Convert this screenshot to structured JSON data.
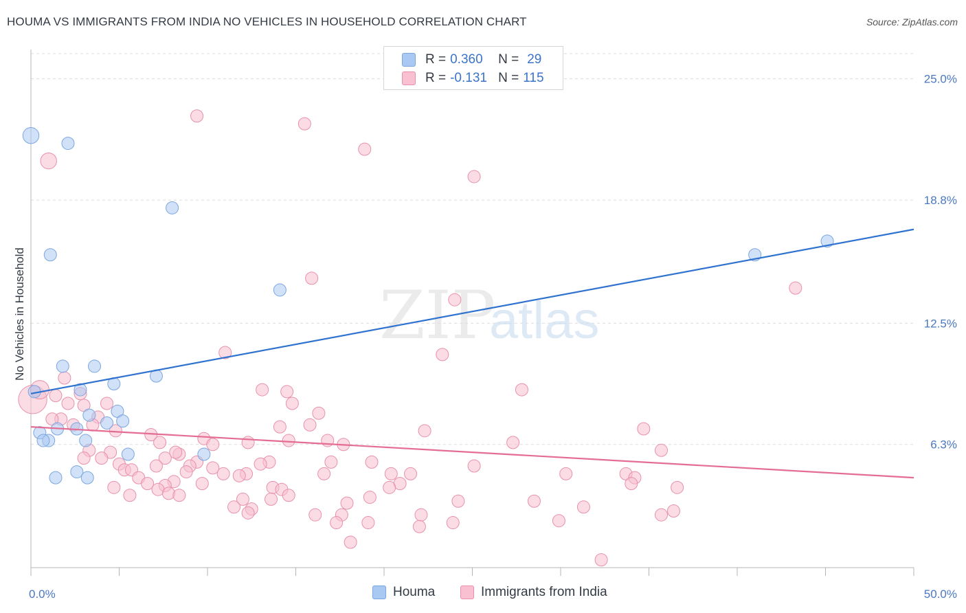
{
  "title": "HOUMA VS IMMIGRANTS FROM INDIA NO VEHICLES IN HOUSEHOLD CORRELATION CHART",
  "source": "Source: ZipAtlas.com",
  "watermark": {
    "zip": "ZIP",
    "atlas": "atlas"
  },
  "legend": {
    "rows": [
      {
        "r_label": "R =",
        "r_value": "0.360",
        "n_label": "N =",
        "n_value": "29",
        "color": "#a9c8f2",
        "border": "#7aa6e0"
      },
      {
        "r_label": "R =",
        "r_value": "-0.131",
        "n_label": "N =",
        "n_value": "115",
        "color": "#f8c0d0",
        "border": "#e890ab"
      }
    ]
  },
  "bottom_legend": [
    {
      "label": "Houma",
      "color": "#a9c8f2",
      "border": "#7aa6e0"
    },
    {
      "label": "Immigrants from India",
      "color": "#f8c0d0",
      "border": "#e890ab"
    }
  ],
  "chart_data": {
    "type": "scatter",
    "title": "HOUMA VS IMMIGRANTS FROM INDIA NO VEHICLES IN HOUSEHOLD CORRELATION CHART",
    "xlabel": "",
    "ylabel": "No Vehicles in Household",
    "xlim": [
      0,
      50
    ],
    "ylim": [
      0,
      26.5
    ],
    "x_tick_labels": [
      "0.0%",
      "50.0%"
    ],
    "y_ticks": [
      6.3,
      12.5,
      18.8,
      25.0
    ],
    "y_tick_labels": [
      "6.3%",
      "12.5%",
      "18.8%",
      "25.0%"
    ],
    "grid": "horizontal dashed",
    "legend_position": "top-center",
    "series": [
      {
        "name": "Houma",
        "color": "#a9c8f2",
        "stroke": "#7aa6e0",
        "line_color": "#2f72cf",
        "trend": {
          "x": [
            0,
            50
          ],
          "y": [
            8.9,
            17.3
          ]
        },
        "points": [
          [
            0.0,
            22.1,
            1.3
          ],
          [
            2.1,
            21.7,
            1
          ],
          [
            8.0,
            18.4,
            1
          ],
          [
            1.1,
            16.0,
            1
          ],
          [
            14.1,
            14.2,
            1
          ],
          [
            41.0,
            16.0,
            1
          ],
          [
            45.1,
            16.7,
            1
          ],
          [
            1.8,
            10.3,
            1
          ],
          [
            3.6,
            10.3,
            1
          ],
          [
            7.1,
            9.8,
            1
          ],
          [
            4.7,
            9.4,
            1
          ],
          [
            2.8,
            9.1,
            1
          ],
          [
            0.2,
            9.0,
            1
          ],
          [
            4.9,
            8.0,
            1
          ],
          [
            3.3,
            7.8,
            1
          ],
          [
            5.2,
            7.5,
            1
          ],
          [
            4.3,
            7.4,
            1
          ],
          [
            2.6,
            7.1,
            1
          ],
          [
            1.5,
            7.1,
            1
          ],
          [
            0.5,
            6.9,
            1
          ],
          [
            3.1,
            6.5,
            1
          ],
          [
            1.0,
            6.5,
            1
          ],
          [
            0.7,
            6.5,
            1
          ],
          [
            5.5,
            5.8,
            1
          ],
          [
            9.8,
            5.8,
            1
          ],
          [
            2.6,
            4.9,
            1
          ],
          [
            3.2,
            4.6,
            1
          ],
          [
            1.4,
            4.6,
            1
          ]
        ]
      },
      {
        "name": "Immigrants from India",
        "color": "#f8c0d0",
        "stroke": "#e890ab",
        "line_color": "#e46d93",
        "trend": {
          "x": [
            0,
            50
          ],
          "y": [
            7.2,
            4.6
          ]
        },
        "points": [
          [
            0.1,
            8.6,
            2.3
          ],
          [
            0.5,
            9.1,
            1.5
          ],
          [
            1.0,
            20.8,
            1.3
          ],
          [
            9.4,
            23.1,
            1
          ],
          [
            15.5,
            22.7,
            1
          ],
          [
            18.9,
            21.4,
            1
          ],
          [
            25.1,
            20.0,
            1
          ],
          [
            15.9,
            14.8,
            1
          ],
          [
            43.3,
            14.3,
            1
          ],
          [
            24.0,
            13.7,
            1
          ],
          [
            11.0,
            11.0,
            1
          ],
          [
            23.3,
            10.9,
            1
          ],
          [
            1.9,
            9.7,
            1
          ],
          [
            13.1,
            9.1,
            1
          ],
          [
            14.5,
            9.0,
            1
          ],
          [
            27.8,
            9.1,
            1
          ],
          [
            2.8,
            8.9,
            1
          ],
          [
            1.4,
            8.8,
            1
          ],
          [
            4.3,
            8.4,
            1
          ],
          [
            2.1,
            8.4,
            1
          ],
          [
            3.0,
            8.3,
            1
          ],
          [
            14.8,
            8.4,
            1
          ],
          [
            16.3,
            7.9,
            1
          ],
          [
            3.8,
            7.7,
            1
          ],
          [
            1.7,
            7.6,
            1
          ],
          [
            1.2,
            7.6,
            1
          ],
          [
            2.4,
            7.3,
            1
          ],
          [
            3.5,
            7.3,
            1
          ],
          [
            4.8,
            7.0,
            1
          ],
          [
            6.8,
            6.8,
            1
          ],
          [
            14.1,
            7.2,
            1
          ],
          [
            15.8,
            7.3,
            1
          ],
          [
            22.3,
            7.0,
            1
          ],
          [
            34.7,
            7.1,
            1
          ],
          [
            9.8,
            6.6,
            1
          ],
          [
            12.3,
            6.4,
            1
          ],
          [
            14.6,
            6.5,
            1
          ],
          [
            16.8,
            6.5,
            1
          ],
          [
            17.7,
            6.3,
            1
          ],
          [
            10.3,
            6.3,
            1
          ],
          [
            7.3,
            6.4,
            1
          ],
          [
            3.3,
            6.0,
            1
          ],
          [
            4.5,
            5.9,
            1
          ],
          [
            8.4,
            5.8,
            1
          ],
          [
            8.2,
            5.9,
            1
          ],
          [
            27.3,
            6.4,
            1
          ],
          [
            35.7,
            6.0,
            1
          ],
          [
            4.0,
            5.6,
            1
          ],
          [
            7.6,
            5.6,
            1
          ],
          [
            9.4,
            5.4,
            1
          ],
          [
            13.5,
            5.4,
            1
          ],
          [
            17.0,
            5.4,
            1
          ],
          [
            19.3,
            5.4,
            1
          ],
          [
            3.0,
            5.6,
            1
          ],
          [
            5.0,
            5.3,
            1
          ],
          [
            7.1,
            5.2,
            1
          ],
          [
            9.0,
            5.2,
            1
          ],
          [
            10.3,
            5.1,
            1
          ],
          [
            13.0,
            5.3,
            1
          ],
          [
            25.1,
            5.2,
            1
          ],
          [
            5.3,
            5.0,
            1
          ],
          [
            5.7,
            5.0,
            1
          ],
          [
            8.8,
            4.9,
            1
          ],
          [
            10.9,
            4.8,
            1
          ],
          [
            12.2,
            4.8,
            1
          ],
          [
            11.8,
            4.7,
            1
          ],
          [
            16.6,
            4.8,
            1
          ],
          [
            20.4,
            4.8,
            1
          ],
          [
            21.5,
            4.8,
            1
          ],
          [
            30.3,
            4.8,
            1
          ],
          [
            33.7,
            4.8,
            1
          ],
          [
            34.2,
            4.6,
            1
          ],
          [
            6.1,
            4.6,
            1
          ],
          [
            8.1,
            4.4,
            1
          ],
          [
            9.7,
            4.3,
            1
          ],
          [
            6.6,
            4.3,
            1
          ],
          [
            20.9,
            4.3,
            1
          ],
          [
            7.6,
            4.2,
            1
          ],
          [
            7.2,
            4.0,
            1
          ],
          [
            4.7,
            4.1,
            1
          ],
          [
            13.7,
            4.1,
            1
          ],
          [
            14.2,
            4.0,
            1
          ],
          [
            20.3,
            4.1,
            1
          ],
          [
            34.0,
            4.3,
            1
          ],
          [
            36.6,
            4.1,
            1
          ],
          [
            5.6,
            3.7,
            1
          ],
          [
            7.8,
            3.8,
            1
          ],
          [
            8.4,
            3.7,
            1
          ],
          [
            14.6,
            3.7,
            1
          ],
          [
            12.0,
            3.5,
            1
          ],
          [
            13.6,
            3.5,
            1
          ],
          [
            19.2,
            3.6,
            1
          ],
          [
            17.9,
            3.3,
            1
          ],
          [
            24.2,
            3.4,
            1
          ],
          [
            28.5,
            3.4,
            1
          ],
          [
            11.5,
            3.1,
            1
          ],
          [
            12.5,
            3.0,
            1
          ],
          [
            12.3,
            2.8,
            1
          ],
          [
            31.3,
            3.1,
            1
          ],
          [
            36.4,
            2.9,
            1
          ],
          [
            16.1,
            2.7,
            1
          ],
          [
            17.6,
            2.7,
            1
          ],
          [
            22.1,
            2.7,
            1
          ],
          [
            35.7,
            2.7,
            1
          ],
          [
            17.3,
            2.3,
            1
          ],
          [
            19.1,
            2.3,
            1
          ],
          [
            23.9,
            2.3,
            1
          ],
          [
            29.9,
            2.4,
            1
          ],
          [
            22.0,
            2.1,
            1
          ],
          [
            18.1,
            1.3,
            1
          ],
          [
            32.3,
            0.4,
            1
          ]
        ]
      }
    ]
  }
}
